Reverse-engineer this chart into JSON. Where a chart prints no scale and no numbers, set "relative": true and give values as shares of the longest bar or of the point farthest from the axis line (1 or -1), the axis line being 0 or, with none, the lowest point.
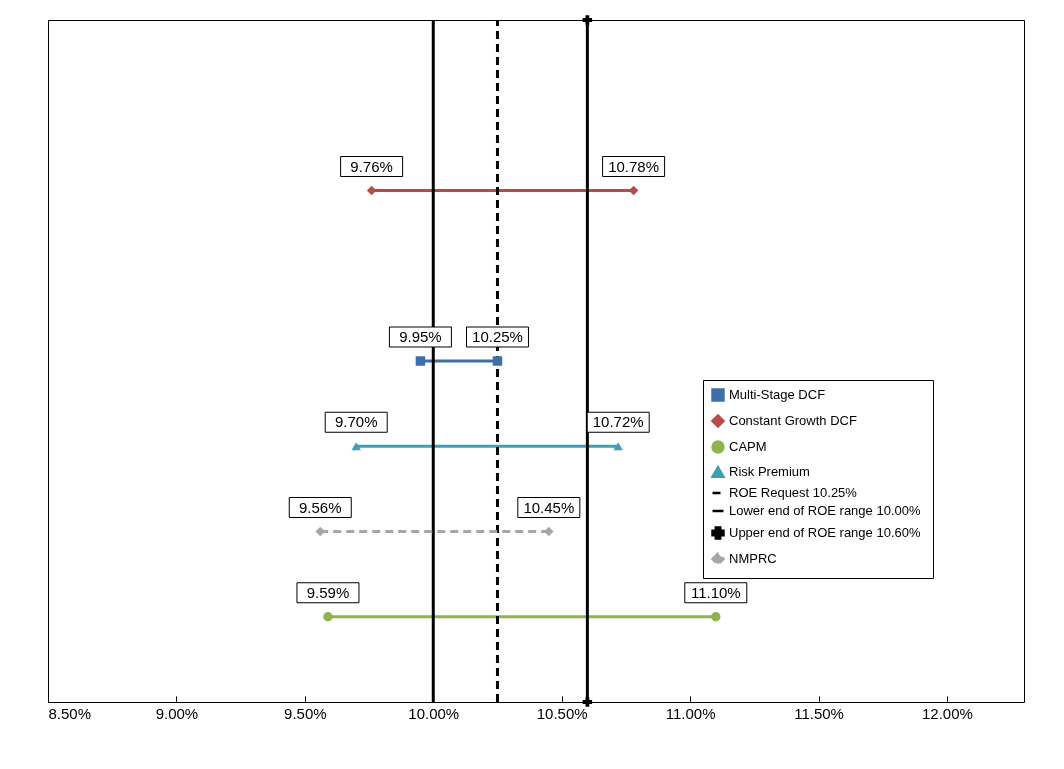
{
  "chart_data": {
    "type": "line",
    "relative": true,
    "tick_labels": "x",
    "grid": false,
    "legend": "right",
    "xlim": [
      8.5,
      12.3
    ],
    "xticks": [
      {
        "value": 8.5,
        "label": "8.50%"
      },
      {
        "value": 9.0,
        "label": "9.00%"
      },
      {
        "value": 9.5,
        "label": "9.50%"
      },
      {
        "value": 10.0,
        "label": "10.00%"
      },
      {
        "value": 10.5,
        "label": "10.50%"
      },
      {
        "value": 11.0,
        "label": "11.00%"
      },
      {
        "value": 11.5,
        "label": "11.50%"
      },
      {
        "value": 12.0,
        "label": "12.00%"
      }
    ],
    "series": [
      {
        "name": "Multi-Stage DCF",
        "color": "#3f6eaa",
        "marker": "square",
        "line_style": "solid",
        "x": [
          9.95,
          10.25
        ],
        "values": [
          0.5,
          0.5
        ]
      },
      {
        "name": "Constant Growth DCF",
        "color": "#b94a48",
        "marker": "diamond",
        "line_style": "solid",
        "x": [
          9.76,
          10.78
        ],
        "values": [
          0.75,
          0.75
        ]
      },
      {
        "name": "CAPM",
        "color": "#8db54f",
        "marker": "circle",
        "line_style": "solid",
        "x": [
          9.59,
          11.1
        ],
        "values": [
          0.125,
          0.125
        ]
      },
      {
        "name": "Risk Premium",
        "color": "#3e9fb8",
        "marker": "triangle",
        "line_style": "solid",
        "x": [
          9.7,
          10.72
        ],
        "values": [
          0.375,
          0.375
        ]
      },
      {
        "name": "ROE Request 10.25%",
        "color": "#000000",
        "marker": "none",
        "line_style": "dashed",
        "x": [
          10.25,
          10.25
        ],
        "values": [
          0,
          1
        ]
      },
      {
        "name": "Lower end of  ROE range 10.00%",
        "color": "#000000",
        "marker": "none",
        "line_style": "solid",
        "x": [
          10.0,
          10.0
        ],
        "values": [
          0,
          1
        ]
      },
      {
        "name": "Upper end of ROE range 10.60%",
        "color": "#000000",
        "marker": "cross",
        "line_style": "solid",
        "x": [
          10.6,
          10.6
        ],
        "values": [
          0,
          1
        ]
      },
      {
        "name": "NMPRC",
        "color": "#a6a6a6",
        "marker": "diamond",
        "line_style": "dashed",
        "x": [
          9.56,
          10.45
        ],
        "values": [
          0.25,
          0.25
        ]
      }
    ],
    "annotations": [
      {
        "text": "9.76%",
        "x": 9.76,
        "y": 0.75
      },
      {
        "text": "10.78%",
        "x": 10.78,
        "y": 0.75
      },
      {
        "text": "9.95%",
        "x": 9.95,
        "y": 0.5
      },
      {
        "text": "10.25%",
        "x": 10.25,
        "y": 0.5
      },
      {
        "text": "9.70%",
        "x": 9.7,
        "y": 0.375
      },
      {
        "text": "10.72%",
        "x": 10.72,
        "y": 0.375
      },
      {
        "text": "9.56%",
        "x": 9.56,
        "y": 0.25
      },
      {
        "text": "10.45%",
        "x": 10.45,
        "y": 0.25
      },
      {
        "text": "9.59%",
        "x": 9.59,
        "y": 0.125
      },
      {
        "text": "11.10%",
        "x": 11.1,
        "y": 0.125
      }
    ]
  }
}
